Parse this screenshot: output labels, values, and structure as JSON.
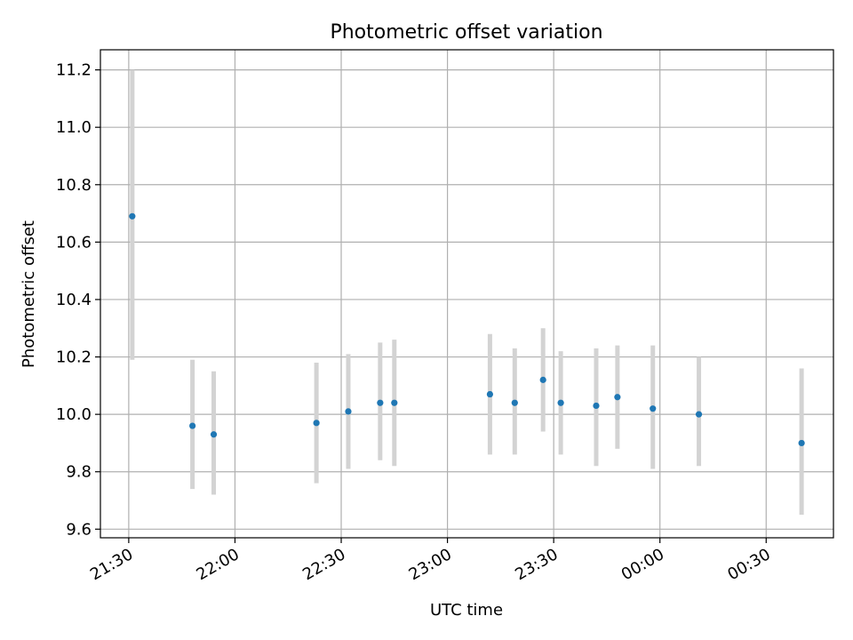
{
  "chart_data": {
    "type": "scatter",
    "title": "Photometric offset variation",
    "xlabel": "UTC time",
    "ylabel": "Photometric offset",
    "x_tick_labels": [
      "21:30",
      "22:00",
      "22:30",
      "23:00",
      "23:30",
      "00:00",
      "00:30"
    ],
    "y_tick_labels": [
      "9.6",
      "9.8",
      "10.0",
      "10.2",
      "10.4",
      "10.6",
      "10.8",
      "11.0",
      "11.2"
    ],
    "xlim_minutes_after_2130": [
      -8,
      199
    ],
    "ylim": [
      9.57,
      11.27
    ],
    "grid": true,
    "marker_color": "#1f77b4",
    "errorbar_color": "#d3d3d3",
    "points": [
      {
        "time": "21:31",
        "y": 10.69,
        "lo": 10.19,
        "hi": 11.2
      },
      {
        "time": "21:48",
        "y": 9.96,
        "lo": 9.74,
        "hi": 10.19
      },
      {
        "time": "21:54",
        "y": 9.93,
        "lo": 9.72,
        "hi": 10.15
      },
      {
        "time": "22:23",
        "y": 9.97,
        "lo": 9.76,
        "hi": 10.18
      },
      {
        "time": "22:32",
        "y": 10.01,
        "lo": 9.81,
        "hi": 10.21
      },
      {
        "time": "22:41",
        "y": 10.04,
        "lo": 9.84,
        "hi": 10.25
      },
      {
        "time": "22:45",
        "y": 10.04,
        "lo": 9.82,
        "hi": 10.26
      },
      {
        "time": "23:12",
        "y": 10.07,
        "lo": 9.86,
        "hi": 10.28
      },
      {
        "time": "23:19",
        "y": 10.04,
        "lo": 9.86,
        "hi": 10.23
      },
      {
        "time": "23:27",
        "y": 10.12,
        "lo": 9.94,
        "hi": 10.3
      },
      {
        "time": "23:32",
        "y": 10.04,
        "lo": 9.86,
        "hi": 10.22
      },
      {
        "time": "23:42",
        "y": 10.03,
        "lo": 9.82,
        "hi": 10.23
      },
      {
        "time": "23:48",
        "y": 10.06,
        "lo": 9.88,
        "hi": 10.24
      },
      {
        "time": "23:58",
        "y": 10.02,
        "lo": 9.81,
        "hi": 10.24
      },
      {
        "time": "00:11",
        "y": 10.0,
        "lo": 9.82,
        "hi": 10.2
      },
      {
        "time": "00:40",
        "y": 9.9,
        "lo": 9.65,
        "hi": 10.16
      }
    ]
  }
}
